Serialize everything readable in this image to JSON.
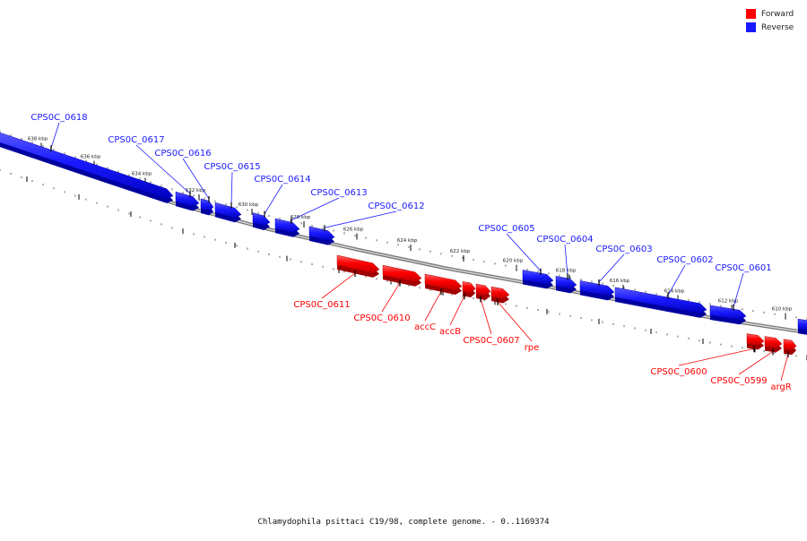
{
  "colors": {
    "forward": "#ff0000",
    "reverse": "#1a1aff",
    "backbone": "#9a9a9a"
  },
  "legend": {
    "forward_label": "Forward",
    "reverse_label": "Reverse"
  },
  "caption": "Chlamydophila psittaci C19/98, complete genome. - 0..1169374",
  "ticks": [
    "638 kbp",
    "636 kbp",
    "634 kbp",
    "632 kbp",
    "630 kbp",
    "628 kbp",
    "626 kbp",
    "624 kbp",
    "622 kbp",
    "620 kbp",
    "618 kbp",
    "616 kbp",
    "614 kbp",
    "612 kbp",
    "610 kbp"
  ],
  "genes": [
    {
      "name": "CPS0C_0618",
      "strand": "reverse"
    },
    {
      "name": "CPS0C_0617",
      "strand": "reverse"
    },
    {
      "name": "CPS0C_0616",
      "strand": "reverse"
    },
    {
      "name": "CPS0C_0615",
      "strand": "reverse"
    },
    {
      "name": "CPS0C_0614",
      "strand": "reverse"
    },
    {
      "name": "CPS0C_0613",
      "strand": "reverse"
    },
    {
      "name": "CPS0C_0612",
      "strand": "reverse"
    },
    {
      "name": "CPS0C_0611",
      "strand": "forward"
    },
    {
      "name": "CPS0C_0610",
      "strand": "forward"
    },
    {
      "name": "accC",
      "strand": "forward"
    },
    {
      "name": "accB",
      "strand": "forward"
    },
    {
      "name": "CPS0C_0607",
      "strand": "forward"
    },
    {
      "name": "rpe",
      "strand": "forward"
    },
    {
      "name": "CPS0C_0605",
      "strand": "reverse"
    },
    {
      "name": "CPS0C_0604",
      "strand": "reverse"
    },
    {
      "name": "CPS0C_0603",
      "strand": "reverse"
    },
    {
      "name": "CPS0C_0602",
      "strand": "reverse"
    },
    {
      "name": "CPS0C_0601",
      "strand": "reverse"
    },
    {
      "name": "CPS0C_0600",
      "strand": "forward"
    },
    {
      "name": "CPS0C_0599",
      "strand": "forward"
    },
    {
      "name": "argR",
      "strand": "forward"
    }
  ]
}
